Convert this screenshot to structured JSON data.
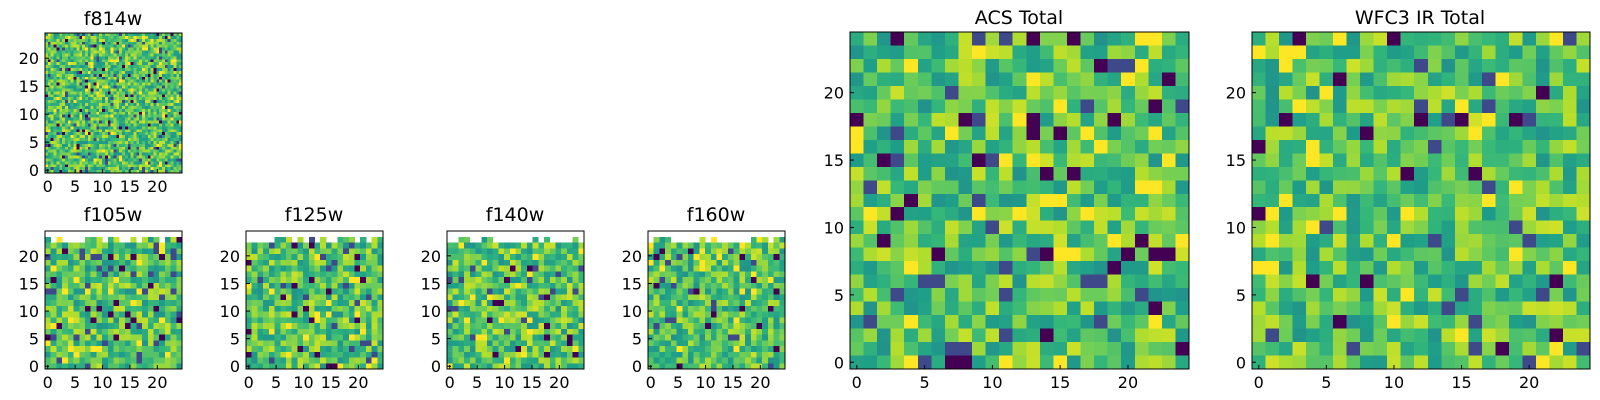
{
  "chart_data": {
    "type": "heatmap",
    "colormap": "viridis",
    "panels": [
      {
        "id": "f814w",
        "title": "f814w",
        "grid": 48,
        "range": [
          0,
          24
        ],
        "xticks": [
          0,
          5,
          10,
          15,
          20
        ],
        "yticks": [
          0,
          5,
          10,
          15,
          20
        ],
        "blank_top_rows": 0,
        "seed": 11
      },
      {
        "id": "f105w",
        "title": "f105w",
        "grid": 24,
        "range": [
          0,
          24
        ],
        "xticks": [
          0,
          5,
          10,
          15,
          20
        ],
        "yticks": [
          0,
          5,
          10,
          15,
          20
        ],
        "blank_top_rows": 2,
        "seed": 23
      },
      {
        "id": "f125w",
        "title": "f125w",
        "grid": 24,
        "range": [
          0,
          24
        ],
        "xticks": [
          0,
          5,
          10,
          15,
          20
        ],
        "yticks": [
          0,
          5,
          10,
          15,
          20
        ],
        "blank_top_rows": 2,
        "seed": 37
      },
      {
        "id": "f140w",
        "title": "f140w",
        "grid": 24,
        "range": [
          0,
          24
        ],
        "xticks": [
          0,
          5,
          10,
          15,
          20
        ],
        "yticks": [
          0,
          5,
          10,
          15,
          20
        ],
        "blank_top_rows": 2,
        "seed": 41
      },
      {
        "id": "f160w",
        "title": "f160w",
        "grid": 24,
        "range": [
          0,
          24
        ],
        "xticks": [
          0,
          5,
          10,
          15,
          20
        ],
        "yticks": [
          0,
          5,
          10,
          15,
          20
        ],
        "blank_top_rows": 2,
        "seed": 53
      },
      {
        "id": "acs-total",
        "title": "ACS Total",
        "grid": 25,
        "range": [
          0,
          24
        ],
        "xticks": [
          0,
          5,
          10,
          15,
          20
        ],
        "yticks": [
          0,
          5,
          10,
          15,
          20
        ],
        "blank_top_rows": 0,
        "seed": 67
      },
      {
        "id": "wfc3-ir-total",
        "title": "WFC3 IR Total",
        "grid": 25,
        "range": [
          0,
          24
        ],
        "xticks": [
          0,
          5,
          10,
          15,
          20
        ],
        "yticks": [
          0,
          5,
          10,
          15,
          20
        ],
        "blank_top_rows": 0,
        "seed": 79
      }
    ]
  }
}
